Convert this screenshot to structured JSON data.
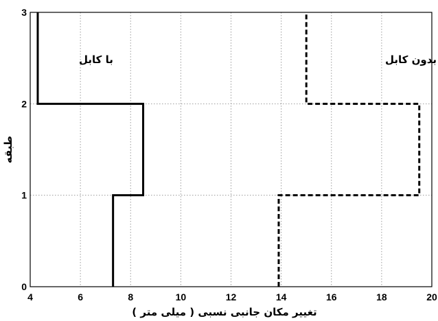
{
  "chart_data": {
    "type": "line",
    "xlabel": "تغییر مکان جانبی نسبی ( میلی متر )",
    "ylabel": "طبقه",
    "xlim": [
      4,
      20
    ],
    "ylim": [
      0,
      3
    ],
    "x_ticks": [
      4,
      6,
      8,
      10,
      12,
      14,
      16,
      18,
      20
    ],
    "y_ticks": [
      0,
      1,
      2,
      3
    ],
    "grid": true,
    "series": [
      {
        "name": "با کابل",
        "style": "solid",
        "color": "#000000",
        "points": [
          [
            7.3,
            0
          ],
          [
            7.3,
            1
          ],
          [
            8.5,
            1
          ],
          [
            8.5,
            2
          ],
          [
            4.3,
            2
          ],
          [
            4.3,
            3
          ]
        ]
      },
      {
        "name": "بدون کابل",
        "style": "dashed",
        "color": "#000000",
        "points": [
          [
            13.9,
            0
          ],
          [
            13.9,
            1
          ],
          [
            19.5,
            1
          ],
          [
            19.5,
            2
          ],
          [
            15.0,
            2
          ],
          [
            15.0,
            3
          ]
        ]
      }
    ]
  }
}
